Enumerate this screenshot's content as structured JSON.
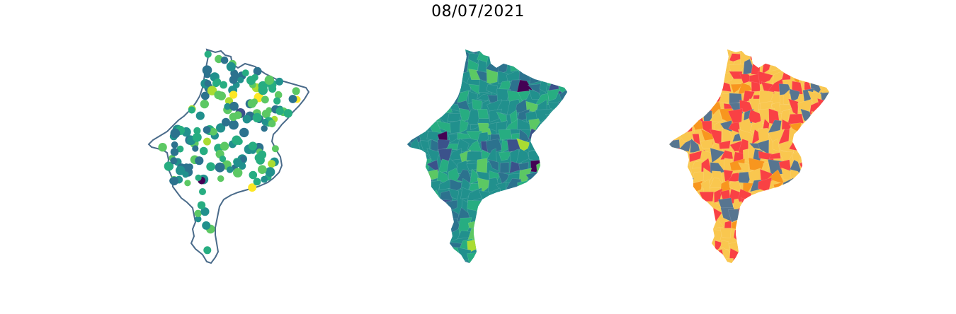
{
  "figure": {
    "title": "08/07/2021"
  },
  "panels": [
    {
      "name": "points",
      "kind": "point map",
      "outline_color": "#4a6b8a",
      "fill_color": "#ffffff"
    },
    {
      "name": "choropleth",
      "kind": "choropleth",
      "colormap": "viridis"
    },
    {
      "name": "classes",
      "kind": "categorical choropleth",
      "class_colors": [
        "#f4c85c",
        "#f23c3c",
        "#f5971f",
        "#4f6a8a"
      ]
    }
  ],
  "colors": {
    "viridis": [
      "#440154",
      "#3b528b",
      "#2c728e",
      "#21908d",
      "#27ad81",
      "#5cc863",
      "#aadc32",
      "#fde725"
    ],
    "classes": [
      "#f9c74f",
      "#f94144",
      "#f8961e",
      "#577590"
    ]
  }
}
